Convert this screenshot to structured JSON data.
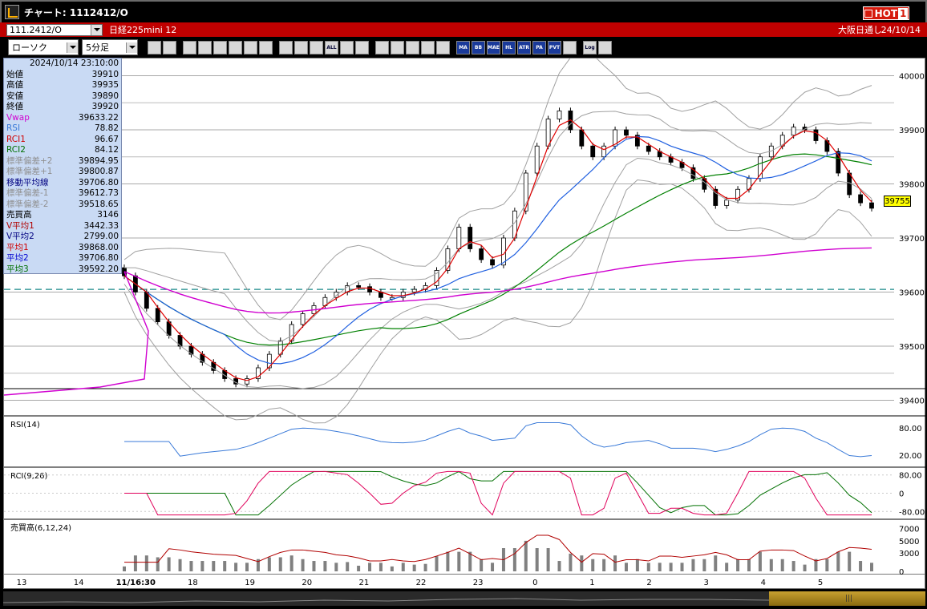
{
  "window": {
    "title": "チャート: 1112412/O",
    "hot_label": "HOT",
    "hot_num": "1"
  },
  "infobar": {
    "symbol": "111.2412/O",
    "instrument": "日経225mini 12",
    "market": "大阪日通し",
    "date": "24/10/14"
  },
  "toolbar": {
    "chart_type": "ローソク",
    "timeframe": "5分足",
    "tools": [
      "zoom",
      "erase",
      "draw-line",
      "pen",
      "cursor",
      "fill",
      "list",
      "trash",
      "candle",
      "bar",
      "arrow",
      "all",
      "brush",
      "palette",
      "sub-add",
      "sub-find",
      "sub-set",
      "sub-delete",
      "sub-x",
      "ma",
      "bb",
      "mae",
      "hl",
      "atr",
      "pa",
      "pvt",
      "pivot",
      "log",
      "export"
    ],
    "tool_labels": {
      "all": "ALL",
      "ma": "MA",
      "bb": "BB",
      "mae": "MAE",
      "hl": "HL",
      "atr": "ATR",
      "pa": "PA",
      "pvt": "PVT",
      "log": "Log"
    }
  },
  "infopanel": {
    "datetime": "2024/10/14 23:10:00",
    "rows": [
      {
        "label": "始値",
        "value": "39910",
        "color": "#000000"
      },
      {
        "label": "高値",
        "value": "39935",
        "color": "#000000"
      },
      {
        "label": "安値",
        "value": "39890",
        "color": "#000000"
      },
      {
        "label": "終値",
        "value": "39920",
        "color": "#000000"
      },
      {
        "label": "Vwap",
        "value": "39633.22",
        "color": "#d000d0"
      },
      {
        "label": "RSI",
        "value": "78.82",
        "color": "#3a7ad8"
      },
      {
        "label": "RCI1",
        "value": "96.67",
        "color": "#d00000"
      },
      {
        "label": "RCI2",
        "value": "84.12",
        "color": "#007000"
      },
      {
        "label": "標準偏差+2",
        "value": "39894.95",
        "color": "#909090"
      },
      {
        "label": "標準偏差+1",
        "value": "39800.87",
        "color": "#909090"
      },
      {
        "label": "移動平均線",
        "value": "39706.80",
        "color": "#000080"
      },
      {
        "label": "標準偏差-1",
        "value": "39612.73",
        "color": "#909090"
      },
      {
        "label": "標準偏差-2",
        "value": "39518.65",
        "color": "#909090"
      },
      {
        "label": "売買高",
        "value": "3146",
        "color": "#000000"
      },
      {
        "label": "V平均1",
        "value": "3442.33",
        "color": "#b00000"
      },
      {
        "label": "V平均2",
        "value": "2799.00",
        "color": "#000080"
      },
      {
        "label": "平均1",
        "value": "39868.00",
        "color": "#d00000"
      },
      {
        "label": "平均2",
        "value": "39706.80",
        "color": "#0000d0"
      },
      {
        "label": "平均3",
        "value": "39592.20",
        "color": "#007000"
      }
    ]
  },
  "price_axis": {
    "ticks": [
      "40000",
      "39900",
      "39800",
      "39700",
      "39600",
      "39500",
      "39400"
    ],
    "last_price": "39755"
  },
  "rsi_panel": {
    "label": "RSI(14)",
    "ticks": [
      "80.00",
      "20.00"
    ]
  },
  "rci_panel": {
    "label": "RCI(9,26)",
    "ticks": [
      "80.00",
      "0",
      "-80.00"
    ]
  },
  "vol_panel": {
    "label": "売買高(6,12,24)",
    "ticks": [
      "7000",
      "5000",
      "3000",
      "0"
    ]
  },
  "time_axis": {
    "labels": [
      "13",
      "14",
      "11/16:30",
      "18",
      "19",
      "20",
      "21",
      "22",
      "23",
      "0",
      "1",
      "2",
      "3",
      "4",
      "5"
    ]
  },
  "colors": {
    "up": "#ffffff",
    "down": "#000000",
    "ma_short": "#e00000",
    "ma_mid": "#2060e0",
    "ma_long": "#008000",
    "vwap": "#d000d0",
    "bands": "#a0a0a0"
  },
  "chart_data": {
    "type": "candlestick",
    "ylim": [
      39380,
      40020
    ],
    "closes": [
      39630,
      39600,
      39570,
      39545,
      39520,
      39500,
      39485,
      39470,
      39455,
      39440,
      39430,
      39440,
      39460,
      39485,
      39510,
      39540,
      39560,
      39575,
      39590,
      39600,
      39612,
      39610,
      39600,
      39590,
      39590,
      39600,
      39605,
      39612,
      39640,
      39680,
      39720,
      39680,
      39660,
      39650,
      39700,
      39750,
      39820,
      39870,
      39920,
      39935,
      39900,
      39870,
      39850,
      39870,
      39900,
      39890,
      39870,
      39860,
      39850,
      39840,
      39830,
      39810,
      39790,
      39760,
      39770,
      39790,
      39810,
      39850,
      39870,
      39890,
      39905,
      39900,
      39880,
      39860,
      39820,
      39780,
      39765,
      39755
    ]
  }
}
